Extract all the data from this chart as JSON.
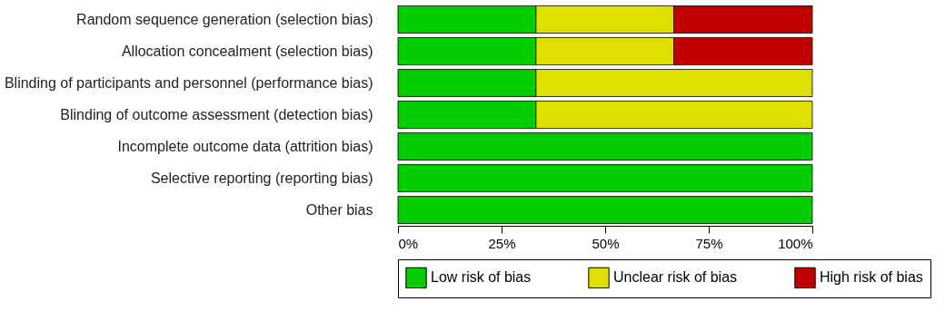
{
  "chart_data": {
    "type": "bar",
    "orientation": "horizontal",
    "stacked": true,
    "grid": false,
    "legend": "bottom",
    "categories": [
      "Random sequence generation (selection bias)",
      "Allocation concealment (selection bias)",
      "Blinding of participants and personnel (performance bias)",
      "Blinding of outcome assessment (detection bias)",
      "Incomplete outcome data (attrition bias)",
      "Selective reporting (reporting bias)",
      "Other bias"
    ],
    "series": [
      {
        "name": "Low risk of bias",
        "color": "#00cc00",
        "values": [
          33.3,
          33.3,
          33.3,
          33.3,
          100,
          100,
          100
        ]
      },
      {
        "name": "Unclear risk of bias",
        "color": "#e0e000",
        "values": [
          33.3,
          33.3,
          66.7,
          66.7,
          null,
          null,
          null
        ]
      },
      {
        "name": "High risk of bias",
        "color": "#c00000",
        "values": [
          33.4,
          33.4,
          null,
          null,
          null,
          null,
          null
        ]
      }
    ],
    "xlim": [
      0,
      100
    ],
    "xticks": [
      {
        "value": 0,
        "label": "0%"
      },
      {
        "value": 25,
        "label": "25%"
      },
      {
        "value": 50,
        "label": "50%"
      },
      {
        "value": 75,
        "label": "75%"
      },
      {
        "value": 100,
        "label": "100%"
      }
    ]
  }
}
